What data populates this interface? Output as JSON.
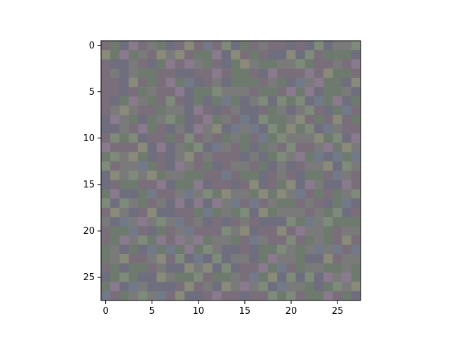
{
  "chart_data": {
    "type": "heatmap",
    "rows": 28,
    "cols": 28,
    "title": "",
    "xlabel": "",
    "ylabel": "",
    "x_ticks": [
      "0",
      "5",
      "10",
      "15",
      "20",
      "25"
    ],
    "y_ticks": [
      "0",
      "5",
      "10",
      "15",
      "20",
      "25"
    ],
    "xlim": [
      -0.5,
      27.5
    ],
    "ylim": [
      27.5,
      -0.5
    ],
    "palette": [
      "#7a7a7a",
      "#6e7a6e",
      "#7a6e7a",
      "#6e6e7e",
      "#7e8a7a",
      "#8a7a8e",
      "#727a8a",
      "#8a8a7a"
    ],
    "background_color": "#7a7a7a"
  }
}
